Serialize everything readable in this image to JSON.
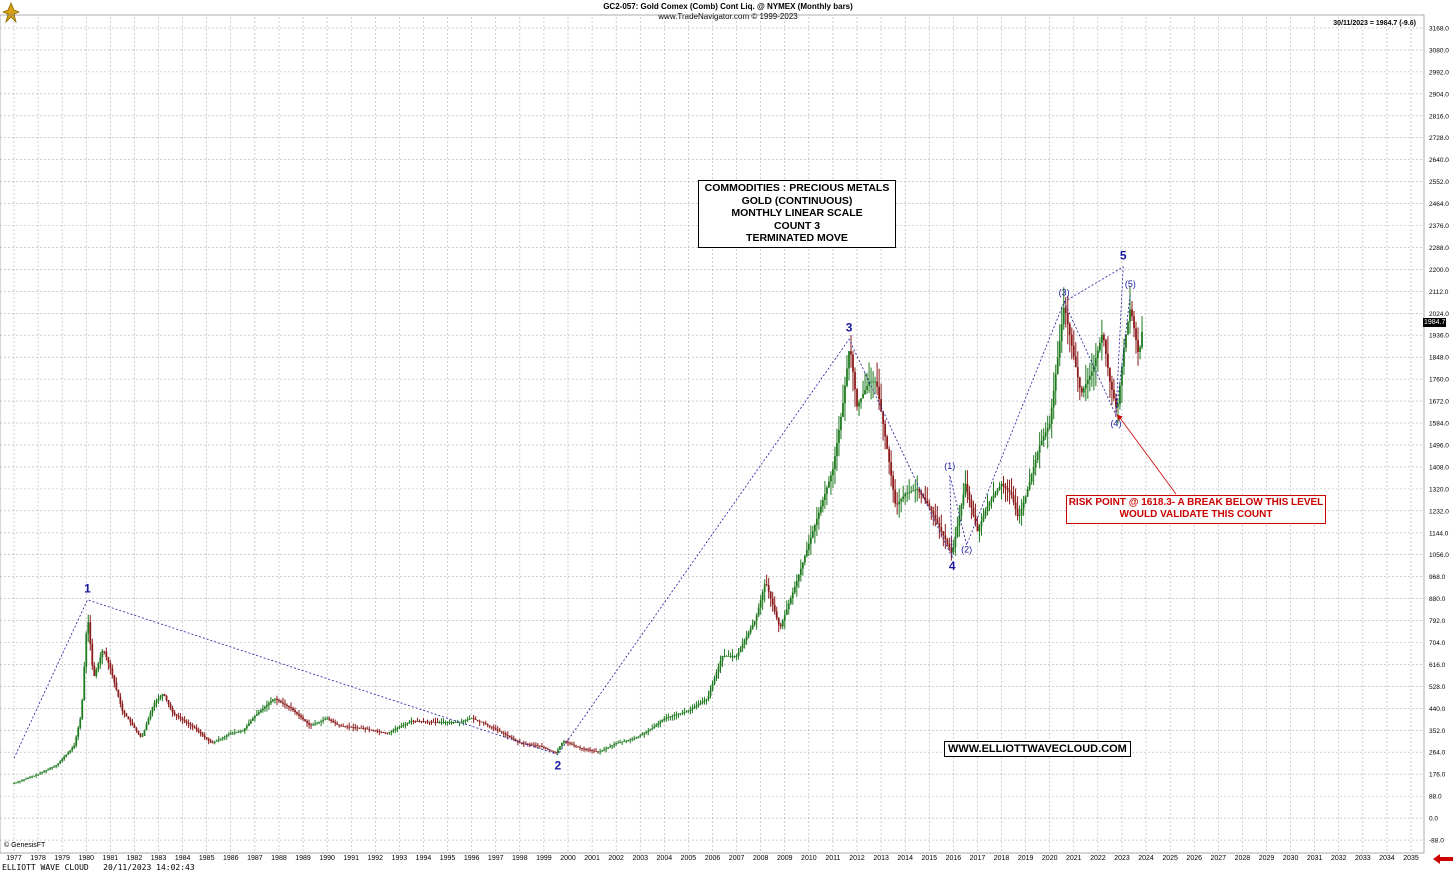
{
  "header": {
    "title": "GC2-057:  Gold Comex (Comb) Cont Liq. @ NYMEX  (Monthly bars)",
    "subtitle": "www.TradeNavigator.com © 1999-2023",
    "price_readout": "30/11/2023 = 1984.7 (-9.6)",
    "last_price_tag": "1984.7"
  },
  "footer": {
    "source": "© GenesisFT",
    "caption": "ELLIOTT WAVE CLOUD   20/11/2023 14:02:43"
  },
  "info_box": {
    "lines": [
      "COMMODITIES : PRECIOUS METALS",
      "GOLD (CONTINUOUS)",
      "MONTHLY LINEAR SCALE",
      "COUNT 3",
      "TERMINATED MOVE"
    ]
  },
  "risk_box": {
    "lines": [
      "RISK POINT @ 1618.3- A BREAK BELOW THIS LEVEL",
      "WOULD VALIDATE THIS COUNT"
    ]
  },
  "website": "WWW.ELLIOTTWAVECLOUD.COM",
  "colors": {
    "up_bar": "#1f7a1f",
    "down_bar": "#8b1a1a",
    "wave_label": "#1a1aa0",
    "risk": "#cc0000",
    "grid": "#b0b0b0"
  },
  "chart_data": {
    "type": "ohlc",
    "scale": "linear",
    "grid": true,
    "x_ticks": [
      "1977",
      "1978",
      "1979",
      "1980",
      "1981",
      "1982",
      "1983",
      "1984",
      "1985",
      "1986",
      "1987",
      "1988",
      "1989",
      "1990",
      "1991",
      "1992",
      "1993",
      "1994",
      "1995",
      "1996",
      "1997",
      "1998",
      "1999",
      "2000",
      "2001",
      "2002",
      "2003",
      "2004",
      "2005",
      "2006",
      "2007",
      "2008",
      "2009",
      "2010",
      "2011",
      "2012",
      "2013",
      "2014",
      "2015",
      "2016",
      "2017",
      "2018",
      "2019",
      "2020",
      "2021",
      "2022",
      "2023",
      "2024",
      "2025",
      "2026",
      "2027",
      "2028",
      "2029",
      "2030",
      "2031",
      "2032",
      "2033",
      "2034",
      "2035"
    ],
    "y_ticks": [
      "3168.0",
      "3080.0",
      "2992.0",
      "2904.0",
      "2816.0",
      "2728.0",
      "2640.0",
      "2552.0",
      "2464.0",
      "2376.0",
      "2288.0",
      "2200.0",
      "2112.0",
      "2024.0",
      "1936.0",
      "1848.0",
      "1760.0",
      "1672.0",
      "1584.0",
      "1496.0",
      "1408.0",
      "1320.0",
      "1232.0",
      "1144.0",
      "1056.0",
      "968.0",
      "880.0",
      "792.0",
      "704.0",
      "616.0",
      "528.0",
      "440.0",
      "352.0",
      "264.0",
      "176.0",
      "88.0",
      "0.0",
      "-88.0"
    ],
    "ylim": [
      -132,
      3212
    ],
    "price_path": [
      [
        1977.0,
        140
      ],
      [
        1978.0,
        175
      ],
      [
        1978.8,
        215
      ],
      [
        1979.5,
        290
      ],
      [
        1979.8,
        420
      ],
      [
        1980.05,
        820
      ],
      [
        1980.3,
        560
      ],
      [
        1980.7,
        680
      ],
      [
        1981.0,
        600
      ],
      [
        1981.5,
        430
      ],
      [
        1982.3,
        320
      ],
      [
        1982.8,
        460
      ],
      [
        1983.2,
        500
      ],
      [
        1983.6,
        420
      ],
      [
        1984.5,
        360
      ],
      [
        1985.2,
        300
      ],
      [
        1986.0,
        340
      ],
      [
        1986.5,
        350
      ],
      [
        1987.0,
        410
      ],
      [
        1987.8,
        480
      ],
      [
        1988.5,
        440
      ],
      [
        1989.3,
        370
      ],
      [
        1990.0,
        400
      ],
      [
        1990.5,
        370
      ],
      [
        1991.5,
        360
      ],
      [
        1992.5,
        340
      ],
      [
        1993.5,
        390
      ],
      [
        1994.5,
        385
      ],
      [
        1995.5,
        385
      ],
      [
        1996.0,
        400
      ],
      [
        1996.5,
        380
      ],
      [
        1997.3,
        340
      ],
      [
        1998.0,
        300
      ],
      [
        1998.8,
        290
      ],
      [
        1999.5,
        260
      ],
      [
        1999.8,
        310
      ],
      [
        2000.5,
        280
      ],
      [
        2001.3,
        265
      ],
      [
        2002.0,
        300
      ],
      [
        2002.8,
        320
      ],
      [
        2003.5,
        360
      ],
      [
        2004.0,
        400
      ],
      [
        2005.0,
        430
      ],
      [
        2005.8,
        480
      ],
      [
        2006.4,
        650
      ],
      [
        2007.0,
        650
      ],
      [
        2007.8,
        800
      ],
      [
        2008.2,
        950
      ],
      [
        2008.8,
        760
      ],
      [
        2009.5,
        950
      ],
      [
        2010.0,
        1100
      ],
      [
        2010.5,
        1250
      ],
      [
        2011.0,
        1400
      ],
      [
        2011.4,
        1650
      ],
      [
        2011.7,
        1900
      ],
      [
        2012.0,
        1650
      ],
      [
        2012.5,
        1750
      ],
      [
        2012.8,
        1750
      ],
      [
        2013.3,
        1450
      ],
      [
        2013.6,
        1250
      ],
      [
        2014.0,
        1300
      ],
      [
        2014.5,
        1320
      ],
      [
        2015.0,
        1250
      ],
      [
        2015.5,
        1150
      ],
      [
        2015.95,
        1060
      ],
      [
        2016.5,
        1340
      ],
      [
        2017.0,
        1150
      ],
      [
        2017.5,
        1270
      ],
      [
        2018.0,
        1340
      ],
      [
        2018.4,
        1300
      ],
      [
        2018.7,
        1200
      ],
      [
        2019.0,
        1290
      ],
      [
        2019.6,
        1500
      ],
      [
        2020.0,
        1580
      ],
      [
        2020.6,
        2060
      ],
      [
        2021.0,
        1850
      ],
      [
        2021.3,
        1700
      ],
      [
        2021.8,
        1800
      ],
      [
        2022.2,
        1950
      ],
      [
        2022.5,
        1750
      ],
      [
        2022.8,
        1630
      ],
      [
        2023.1,
        1900
      ],
      [
        2023.35,
        2050
      ],
      [
        2023.7,
        1850
      ],
      [
        2023.88,
        1984.7
      ]
    ],
    "wave_path": [
      [
        1977.0,
        240
      ],
      [
        1980.05,
        875
      ],
      [
        1999.58,
        255
      ],
      [
        2011.67,
        1920
      ],
      [
        2015.95,
        1045
      ]
    ],
    "minor_wave_path": [
      [
        2015.95,
        1045
      ],
      [
        2015.85,
        1375
      ],
      [
        2016.55,
        1095
      ],
      [
        2020.6,
        2070
      ],
      [
        2022.75,
        1615
      ],
      [
        2023.35,
        2105
      ]
    ],
    "extension_path": [
      [
        2020.6,
        2070
      ],
      [
        2023.05,
        2210
      ],
      [
        2022.75,
        1615
      ]
    ],
    "wave_labels": [
      {
        "text": "1",
        "x": 1980.05,
        "y": 905
      },
      {
        "text": "2",
        "x": 1999.58,
        "y": 195
      },
      {
        "text": "3",
        "x": 2011.67,
        "y": 1950
      },
      {
        "text": "4",
        "x": 2015.95,
        "y": 995
      },
      {
        "text": "5",
        "x": 2023.05,
        "y": 2240
      },
      {
        "text": "(1)",
        "x": 2015.85,
        "y": 1400
      },
      {
        "text": "(2)",
        "x": 2016.55,
        "y": 1065
      },
      {
        "text": "(3)",
        "x": 2020.6,
        "y": 2095
      },
      {
        "text": "(4)",
        "x": 2022.75,
        "y": 1570
      },
      {
        "text": "(5)",
        "x": 2023.35,
        "y": 2130
      }
    ],
    "risk_level": 1618.3
  }
}
